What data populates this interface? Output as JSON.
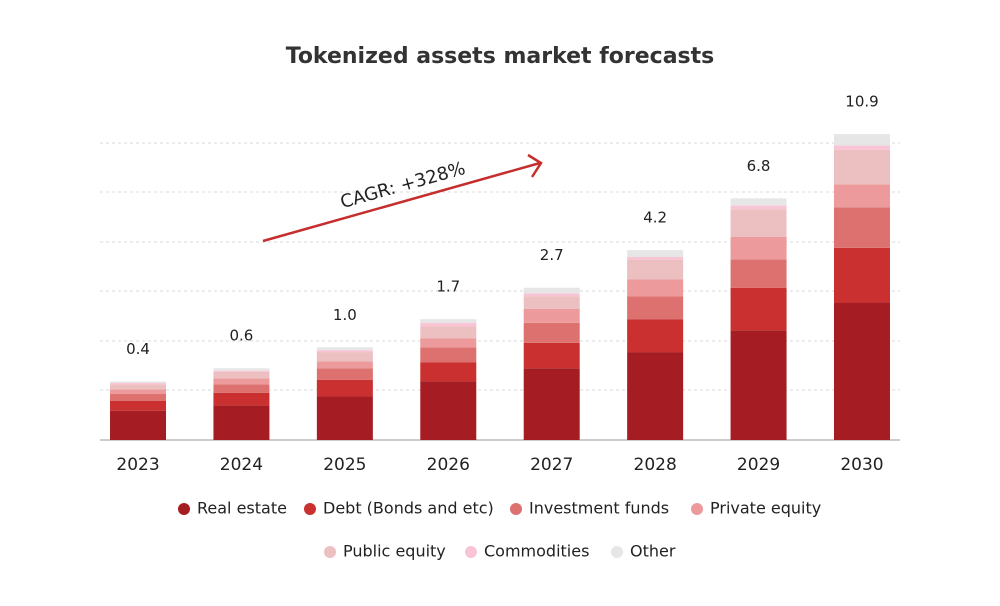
{
  "chart_data": {
    "type": "bar",
    "stacked": true,
    "y_scale": "sqrt",
    "title": "Tokenized assets market forecasts",
    "annotation": "CAGR: +328%",
    "categories": [
      "2023",
      "2024",
      "2025",
      "2026",
      "2027",
      "2028",
      "2029",
      "2030"
    ],
    "ylim": [
      0,
      12
    ],
    "series": [
      {
        "name": "Real estate",
        "color": "#a51d22",
        "values": [
          0.1,
          0.14,
          0.22,
          0.4,
          0.6,
          0.9,
          1.4,
          2.2
        ]
      },
      {
        "name": "Debt (Bonds and etc)",
        "color": "#c9302f",
        "values": [
          0.08,
          0.12,
          0.2,
          0.3,
          0.5,
          0.8,
          1.3,
          2.1
        ]
      },
      {
        "name": "Investment funds",
        "color": "#dc7170",
        "values": [
          0.07,
          0.1,
          0.18,
          0.3,
          0.5,
          0.7,
          1.1,
          2.0
        ]
      },
      {
        "name": "Private equity",
        "color": "#ec9a9b",
        "values": [
          0.05,
          0.08,
          0.12,
          0.2,
          0.4,
          0.6,
          1.0,
          1.3
        ]
      },
      {
        "name": "Public equity",
        "color": "#ecc0c0",
        "values": [
          0.06,
          0.1,
          0.18,
          0.3,
          0.4,
          0.8,
          1.4,
          2.2
        ]
      },
      {
        "name": "Commodities",
        "color": "#f9c5d4",
        "values": [
          0.02,
          0.02,
          0.04,
          0.1,
          0.1,
          0.1,
          0.2,
          0.3
        ]
      },
      {
        "name": "Other",
        "color": "#e6e6e6",
        "values": [
          0.02,
          0.04,
          0.06,
          0.1,
          0.2,
          0.3,
          0.4,
          0.8
        ]
      }
    ],
    "totals": {
      "values": [
        0.4,
        0.6,
        1.0,
        1.7,
        2.7,
        4.2,
        6.8,
        10.9
      ],
      "value_labels": [
        "0.4",
        "0.6",
        "1.0",
        "1.7",
        "2.7",
        "4.2",
        "6.8",
        "10.9"
      ]
    }
  }
}
